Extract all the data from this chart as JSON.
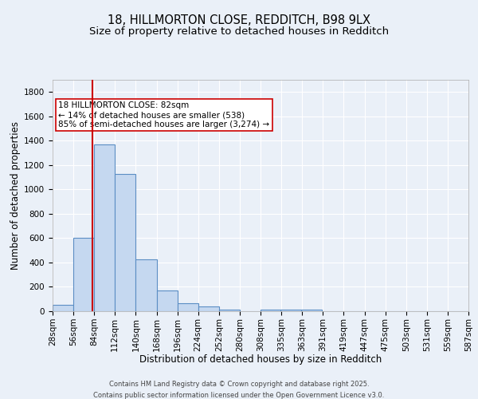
{
  "title_line1": "18, HILLMORTON CLOSE, REDDITCH, B98 9LX",
  "title_line2": "Size of property relative to detached houses in Redditch",
  "xlabel": "Distribution of detached houses by size in Redditch",
  "ylabel": "Number of detached properties",
  "bar_left_edges": [
    28,
    56,
    84,
    112,
    140,
    168,
    196,
    224,
    252,
    280,
    308,
    335,
    363,
    391,
    419,
    447,
    475,
    503,
    531,
    559
  ],
  "bar_heights": [
    55,
    605,
    1370,
    1130,
    425,
    170,
    65,
    40,
    10,
    0,
    10,
    15,
    10,
    0,
    0,
    0,
    0,
    0,
    0,
    0
  ],
  "bin_width": 28,
  "bar_facecolor": "#c5d8f0",
  "bar_edgecolor": "#5b8ec4",
  "tick_labels": [
    "28sqm",
    "56sqm",
    "84sqm",
    "112sqm",
    "140sqm",
    "168sqm",
    "196sqm",
    "224sqm",
    "252sqm",
    "280sqm",
    "308sqm",
    "335sqm",
    "363sqm",
    "391sqm",
    "419sqm",
    "447sqm",
    "475sqm",
    "503sqm",
    "531sqm",
    "559sqm",
    "587sqm"
  ],
  "ylim": [
    0,
    1900
  ],
  "yticks": [
    0,
    200,
    400,
    600,
    800,
    1000,
    1200,
    1400,
    1600,
    1800
  ],
  "property_line_x": 82,
  "property_line_color": "#cc0000",
  "annotation_text": "18 HILLMORTON CLOSE: 82sqm\n← 14% of detached houses are smaller (538)\n85% of semi-detached houses are larger (3,274) →",
  "annotation_box_edgecolor": "#cc0000",
  "annotation_box_facecolor": "white",
  "background_color": "#eaf0f8",
  "grid_color": "#ffffff",
  "footer_text": "Contains HM Land Registry data © Crown copyright and database right 2025.\nContains public sector information licensed under the Open Government Licence v3.0.",
  "title_fontsize": 10.5,
  "subtitle_fontsize": 9.5,
  "axis_label_fontsize": 8.5,
  "tick_fontsize": 7.5,
  "annotation_fontsize": 7.5,
  "footer_fontsize": 6.0
}
